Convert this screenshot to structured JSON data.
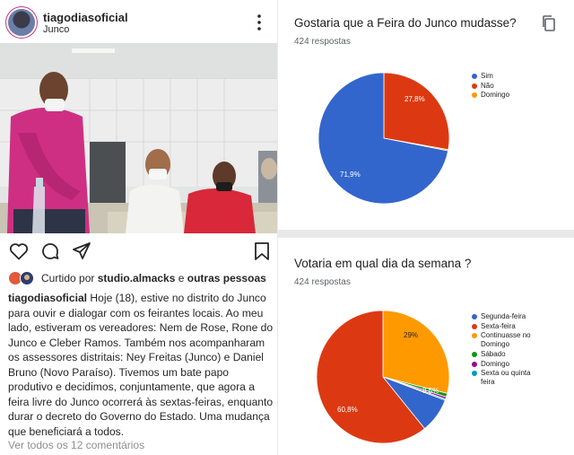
{
  "post": {
    "username": "tiagodiasoficial",
    "location": "Junco",
    "liked_prefix": "Curtido por ",
    "liked_user": "studio.almacks",
    "liked_middle": " e ",
    "liked_others": "outras pessoas",
    "caption_user": "tiagodiasoficial",
    "caption_text": "Hoje (18), estive no distrito do Junco para ouvir e dialogar com os feirantes locais. Ao meu lado, estiveram os vereadores: Nem de Rose, Rone do Junco e Cleber Ramos. Também nos acompanharam os assessores distritais: Ney Freitas (Junco) e Daniel Bruno (Novo Paraíso). Tivemos um bate papo produtivo e decidimos, conjuntamente, que agora a feira livre do Junco ocorrerá às sextas-feiras, enquanto durar o decreto do Governo do Estado. Uma mudança que beneficiará a todos.",
    "comments_link": "Ver todos os 12 comentários",
    "icons": [
      "more-vertical-icon",
      "heart-icon",
      "comment-icon",
      "share-icon",
      "bookmark-icon"
    ]
  },
  "form1": {
    "title": "Gostaria que a Feira do Junco mudasse?",
    "responses": "424 respostas",
    "labels": {
      "a": "71,9%",
      "b": "27,8%"
    }
  },
  "form2": {
    "title": "Votaria em qual dia da semana ?",
    "responses": "424 respostas",
    "labels": {
      "a": "60,8%",
      "b": "29%",
      "c": "8,5%"
    }
  },
  "chart_data": [
    {
      "type": "pie",
      "title": "Gostaria que a Feira do Junco mudasse?",
      "legend_position": "right",
      "categories": [
        "Sim",
        "Não",
        "Domingo"
      ],
      "values": [
        71.9,
        27.8,
        0.3
      ],
      "colors": [
        "#3366cc",
        "#dc3912",
        "#ff9900"
      ]
    },
    {
      "type": "pie",
      "title": "Votaria em qual dia da semana ?",
      "legend_position": "right",
      "categories": [
        "Segunda-feira",
        "Sexta-feira",
        "Continuasse no Domingo",
        "Sábado",
        "Domingo",
        "Sexta ou quinta feira"
      ],
      "values": [
        8.5,
        60.8,
        29.0,
        0.9,
        0.5,
        0.3
      ],
      "colors": [
        "#3366cc",
        "#dc3912",
        "#ff9900",
        "#109618",
        "#990099",
        "#0099c6"
      ]
    }
  ]
}
